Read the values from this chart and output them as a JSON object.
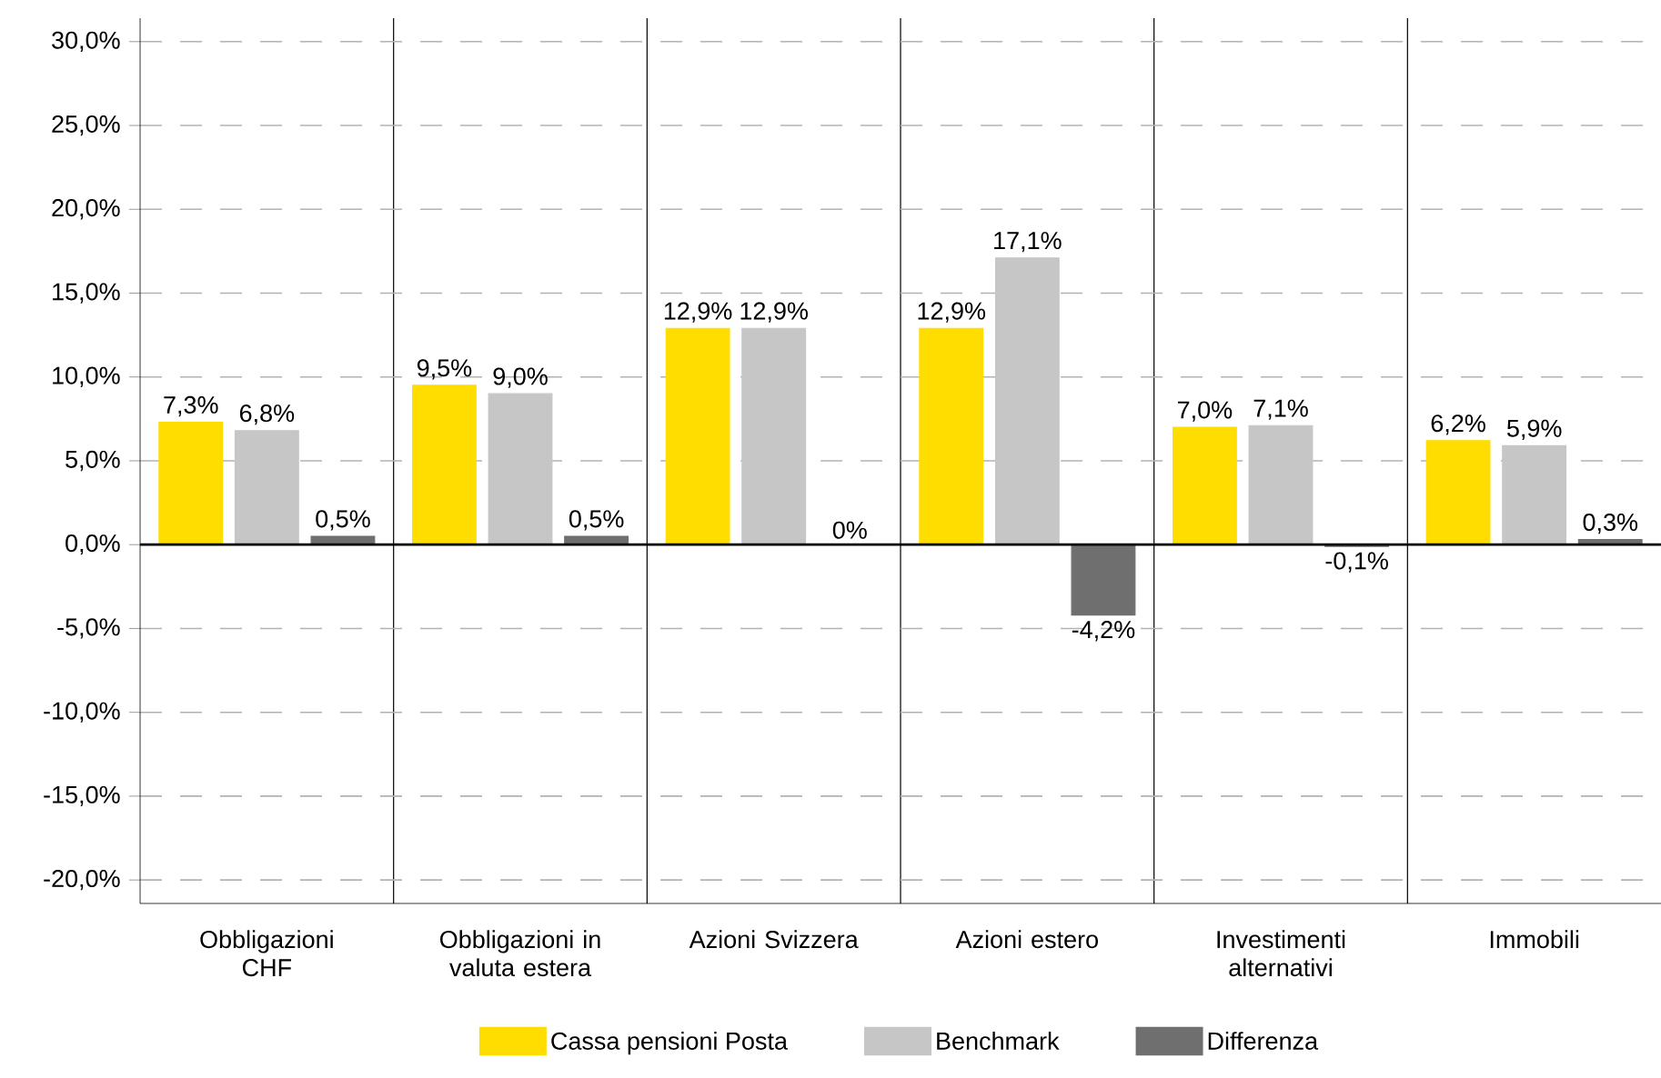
{
  "chart_data": {
    "type": "bar",
    "categories": [
      "Obbligazioni CHF",
      "Obbligazioni in valuta estera",
      "Azioni Svizzera",
      "Azioni estero",
      "Investimenti alternativi",
      "Immobili"
    ],
    "series": [
      {
        "name": "Cassa pensioni Posta",
        "color": "#ffdd00",
        "values": [
          7.3,
          9.5,
          12.9,
          12.9,
          7.0,
          6.2
        ],
        "value_labels": [
          "7,3%",
          "9,5%",
          "12,9%",
          "12,9%",
          "7,0%",
          "6,2%"
        ]
      },
      {
        "name": "Benchmark",
        "color": "#c6c6c6",
        "values": [
          6.8,
          9.0,
          12.9,
          17.1,
          7.1,
          5.9
        ],
        "value_labels": [
          "6,8%",
          "9,0%",
          "12,9%",
          "17,1%",
          "7,1%",
          "5,9%"
        ]
      },
      {
        "name": "Differenza",
        "color": "#6f6f6f",
        "values": [
          0.5,
          0.5,
          0,
          -4.2,
          -0.1,
          0.3
        ],
        "value_labels": [
          "0,5%",
          "0,5%",
          "0%",
          "-4,2%",
          "-0,1%",
          "0,3%"
        ]
      }
    ],
    "ylim": [
      -21.4,
      31.4
    ],
    "yticks": [
      {
        "value": -20,
        "label": "-20,0%"
      },
      {
        "value": -15,
        "label": "-15,0%"
      },
      {
        "value": -10,
        "label": "-10,0%"
      },
      {
        "value": -5,
        "label": "-5,0%"
      },
      {
        "value": 0,
        "label": "0,0%"
      },
      {
        "value": 5,
        "label": "5,0%"
      },
      {
        "value": 10,
        "label": "10,0%"
      },
      {
        "value": 15,
        "label": "15,0%"
      },
      {
        "value": 20,
        "label": "20,0%"
      },
      {
        "value": 25,
        "label": "25,0%"
      },
      {
        "value": 30,
        "label": "30,0%"
      }
    ],
    "grid": "y",
    "legend": "bottom"
  }
}
